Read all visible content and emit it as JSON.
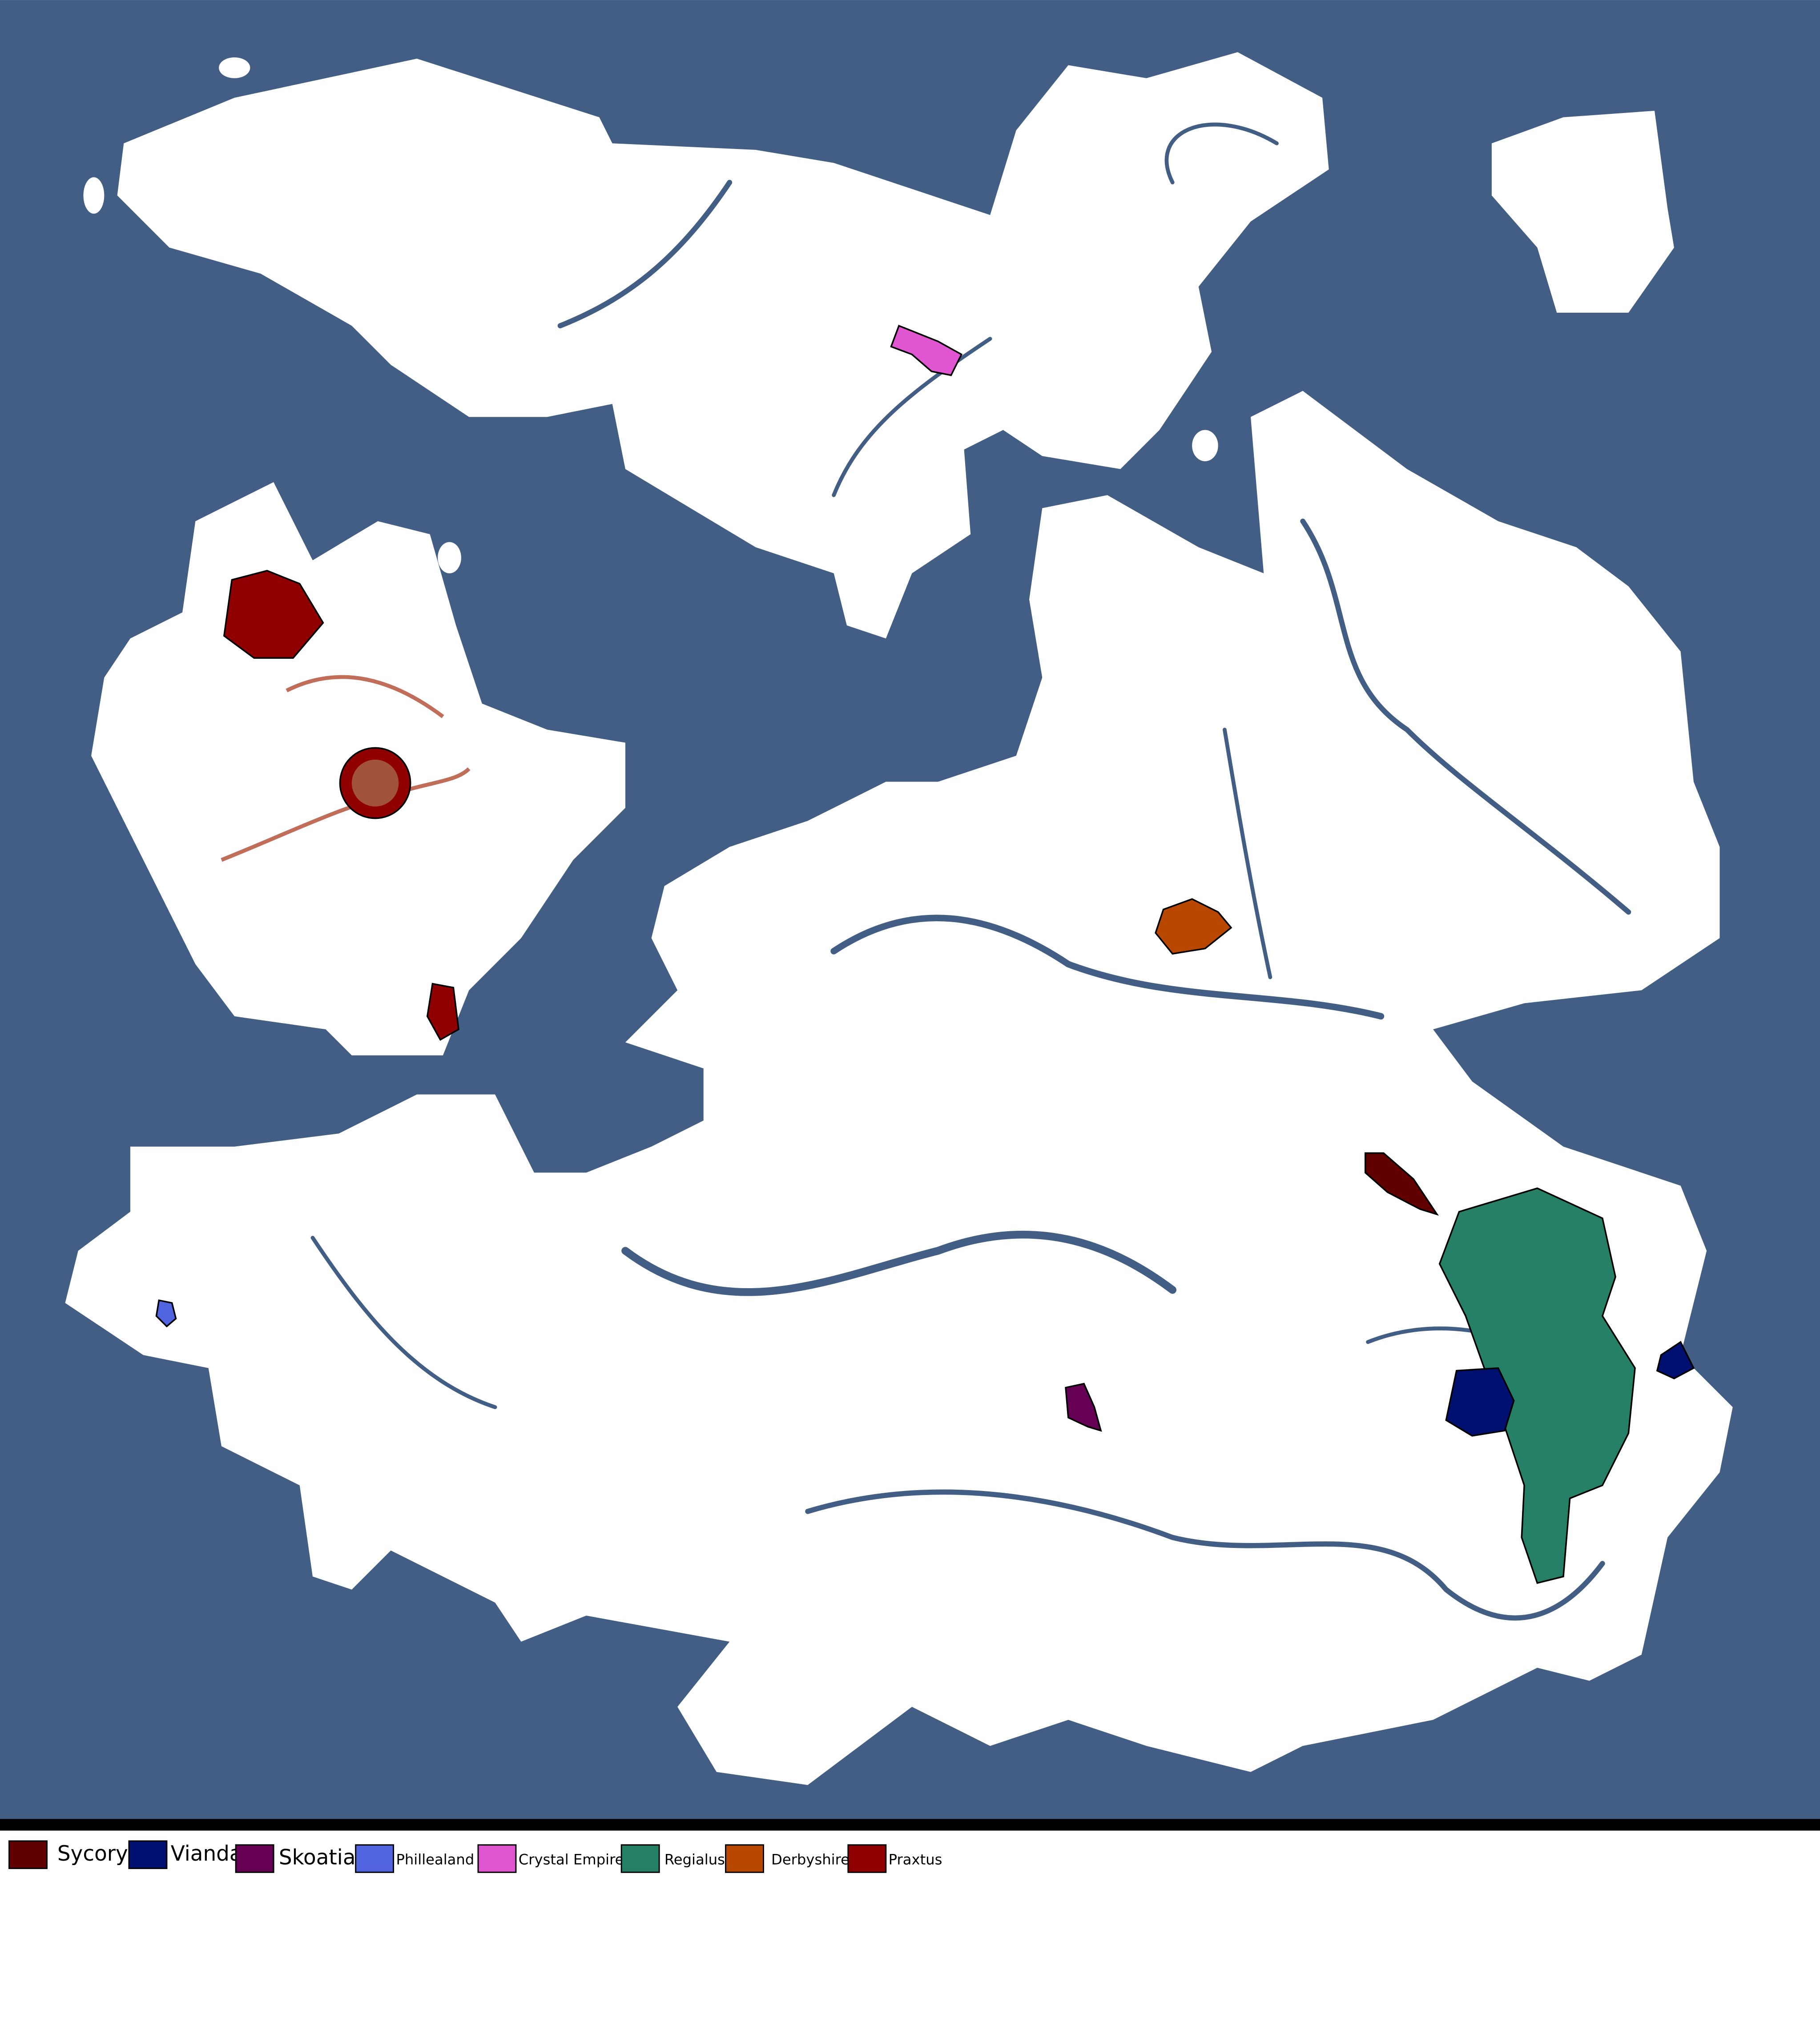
{
  "map": {
    "ocean_color": "#425e84",
    "land_color": "#ffffff",
    "territory_outline": "#000000"
  },
  "legend": {
    "items": [
      {
        "label": "Sycoryo",
        "color": "#600000"
      },
      {
        "label": "Vianda",
        "color": "#001070"
      },
      {
        "label": "Skoatia",
        "color": "#660055"
      },
      {
        "label": "Phillealand",
        "color": "#5064e0"
      },
      {
        "label": "Crystal Empire",
        "color": "#e055d0"
      },
      {
        "label": "Regialus",
        "color": "#258066"
      },
      {
        "label": "Derbyshire",
        "color": "#b84800"
      },
      {
        "label": "Praxtus",
        "color": "#900000"
      }
    ]
  }
}
